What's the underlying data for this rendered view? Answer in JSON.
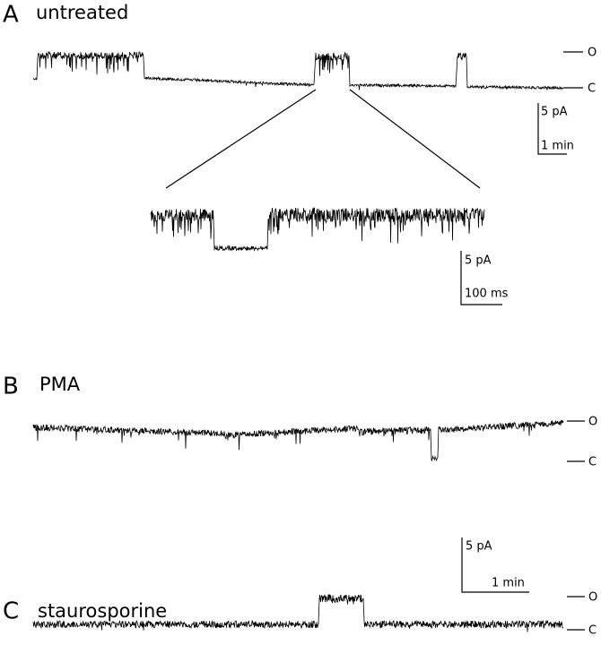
{
  "panels": [
    {
      "letter": "A",
      "title": "untreated",
      "open_label": "O",
      "closed_label": "C",
      "scale_current": "5 pA",
      "scale_time": "1 min",
      "inset": {
        "scale_current": "5 pA",
        "scale_time": "100 ms"
      }
    },
    {
      "letter": "B",
      "title": "PMA",
      "open_label": "O",
      "closed_label": "C",
      "scale_current": "5 pA",
      "scale_time": "1 min"
    },
    {
      "letter": "C",
      "title": "staurosporine",
      "open_label": "O",
      "closed_label": "C"
    }
  ]
}
